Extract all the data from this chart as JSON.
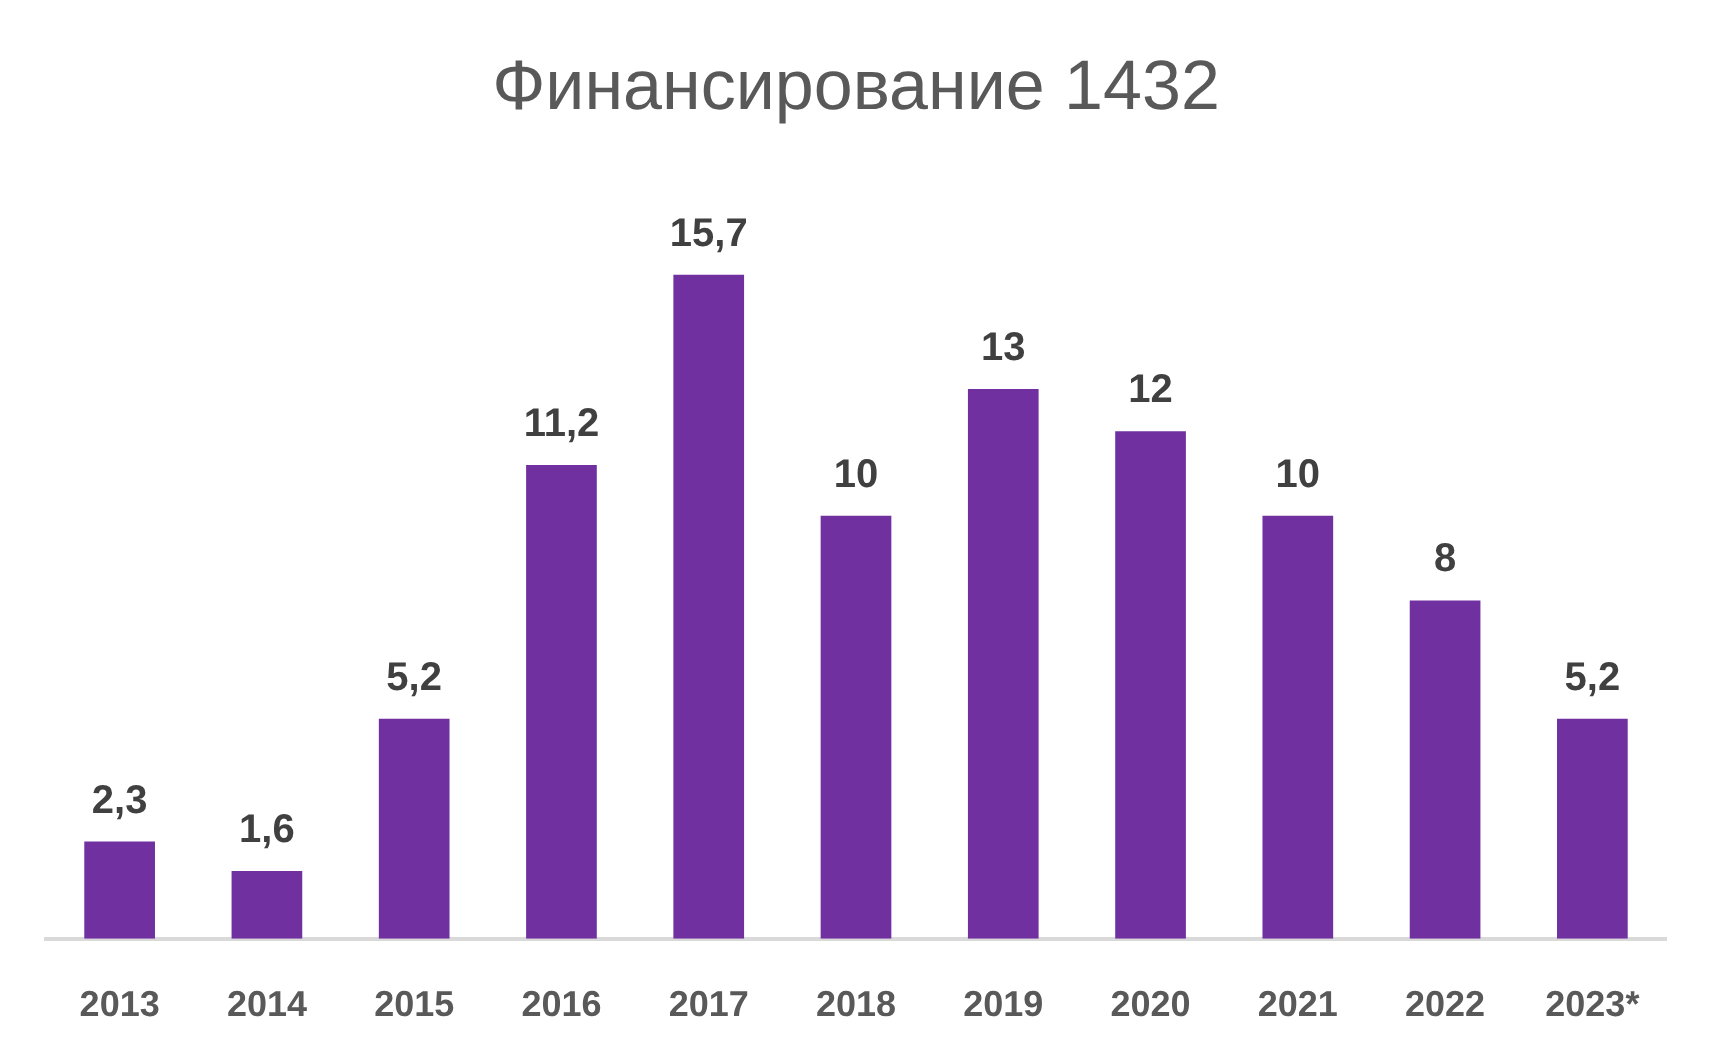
{
  "chart_data": {
    "type": "bar",
    "title": "Финансирование 1432",
    "categories": [
      "2013",
      "2014",
      "2015",
      "2016",
      "2017",
      "2018",
      "2019",
      "2020",
      "2021",
      "2022",
      "2023*"
    ],
    "values": [
      2.3,
      1.6,
      5.2,
      11.2,
      15.7,
      10,
      13,
      12,
      10,
      8,
      5.2
    ],
    "value_labels": [
      "2,3",
      "1,6",
      "5,2",
      "11,2",
      "15,7",
      "10",
      "13",
      "12",
      "10",
      "8",
      "5,2"
    ],
    "color": "#7030a0",
    "tick_labels": "x"
  }
}
